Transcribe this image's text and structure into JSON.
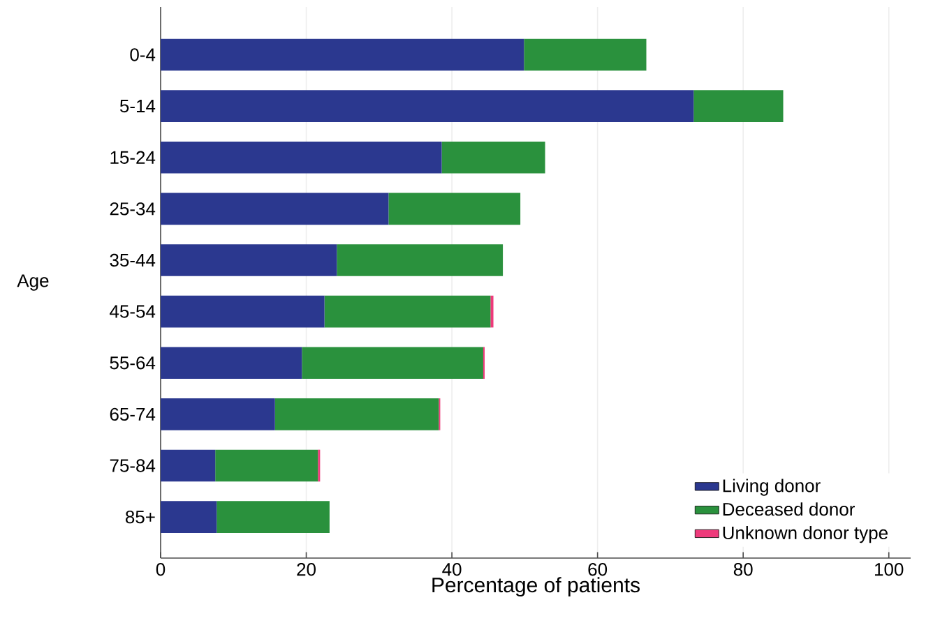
{
  "chart_data": {
    "type": "bar",
    "orientation": "horizontal",
    "stacked": true,
    "xlabel": "Percentage of patients",
    "ylabel": "Age",
    "categories": [
      "0-4",
      "5-14",
      "15-24",
      "25-34",
      "35-44",
      "45-54",
      "55-64",
      "65-74",
      "75-84",
      "85+"
    ],
    "series": [
      {
        "name": "Living donor",
        "color": "#2b388f",
        "values": [
          49.9,
          73.2,
          38.6,
          31.3,
          24.2,
          22.5,
          19.4,
          15.7,
          7.5,
          7.7
        ]
      },
      {
        "name": "Deceased donor",
        "color": "#2a913d",
        "values": [
          16.8,
          12.3,
          14.2,
          18.1,
          22.8,
          22.8,
          24.9,
          22.5,
          14.1,
          15.5
        ]
      },
      {
        "name": "Unknown donor type",
        "color": "#ee3a7b",
        "values": [
          null,
          null,
          null,
          null,
          null,
          0.4,
          0.2,
          0.2,
          0.3,
          null
        ]
      }
    ],
    "xlim": [
      0,
      103
    ],
    "xticks": [
      0,
      20,
      40,
      60,
      80,
      100
    ],
    "grid": "x",
    "legend": "bottom right"
  }
}
